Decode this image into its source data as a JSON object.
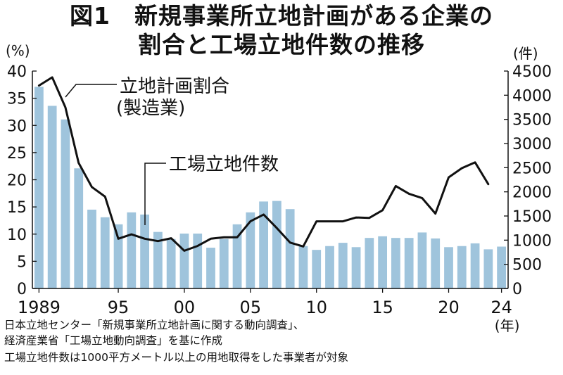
{
  "title": {
    "line1": "図1　新規事業所立地計画がある企業の",
    "line2": "割合と工場立地件数の推移"
  },
  "units": {
    "left": "(%)",
    "right": "(件)",
    "x_suffix": "(年)"
  },
  "notes": [
    "日本立地センター「新規事業所立地計画に関する動向調査」、",
    "経済産業省「工場立地動向調査」を基に作成",
    "工場立地件数は1000平方メートル以上の用地取得をした事業者が対象"
  ],
  "colors": {
    "bar": "#9fc4dc",
    "line": "#111111"
  },
  "chart_data": {
    "type": "bar+line",
    "x": [
      1989,
      1990,
      1991,
      1992,
      1993,
      1994,
      1995,
      1996,
      1997,
      1998,
      1999,
      2000,
      2001,
      2002,
      2003,
      2004,
      2005,
      2006,
      2007,
      2008,
      2009,
      2010,
      2011,
      2012,
      2013,
      2014,
      2015,
      2016,
      2017,
      2018,
      2019,
      2020,
      2021,
      2022,
      2023,
      2024
    ],
    "x_tick_labels": [
      {
        "year": 1989,
        "label": "1989"
      },
      {
        "year": 1995,
        "label": "95"
      },
      {
        "year": 2000,
        "label": "00"
      },
      {
        "year": 2005,
        "label": "05"
      },
      {
        "year": 2010,
        "label": "10"
      },
      {
        "year": 2015,
        "label": "15"
      },
      {
        "year": 2020,
        "label": "20"
      },
      {
        "year": 2024,
        "label": "24"
      }
    ],
    "left_axis": {
      "ylim": [
        0,
        40
      ],
      "ticks": [
        "0",
        "5",
        "10",
        "15",
        "20",
        "25",
        "30",
        "35",
        "40"
      ]
    },
    "right_axis": {
      "ylim": [
        0,
        4500
      ],
      "ticks": [
        "0",
        "500",
        "1000",
        "1500",
        "2000",
        "2500",
        "3000",
        "3500",
        "4000",
        "4500"
      ]
    },
    "series": [
      {
        "name": "立地計画割合\n(製造業)",
        "kind": "bar",
        "axis": "left",
        "values": [
          37.1,
          33.6,
          31.1,
          22.1,
          14.5,
          13.1,
          11.8,
          14.0,
          13.6,
          10.4,
          9.1,
          10.1,
          10.1,
          7.5,
          9.1,
          11.8,
          14.0,
          16.0,
          16.1,
          14.6,
          7.8,
          7.1,
          7.8,
          8.4,
          7.6,
          9.3,
          9.6,
          9.3,
          9.3,
          10.3,
          9.2,
          7.6,
          7.8,
          8.3,
          7.2,
          7.7
        ]
      },
      {
        "name": "工場立地件数",
        "kind": "line",
        "axis": "right",
        "values": [
          4200,
          4370,
          3750,
          2600,
          2100,
          1900,
          1030,
          1120,
          1030,
          980,
          1040,
          780,
          880,
          1030,
          1060,
          1060,
          1390,
          1530,
          1250,
          950,
          870,
          1390,
          1390,
          1390,
          1470,
          1460,
          1620,
          2120,
          1960,
          1870,
          1550,
          2300,
          2490,
          2610,
          2160,
          null
        ]
      }
    ]
  }
}
